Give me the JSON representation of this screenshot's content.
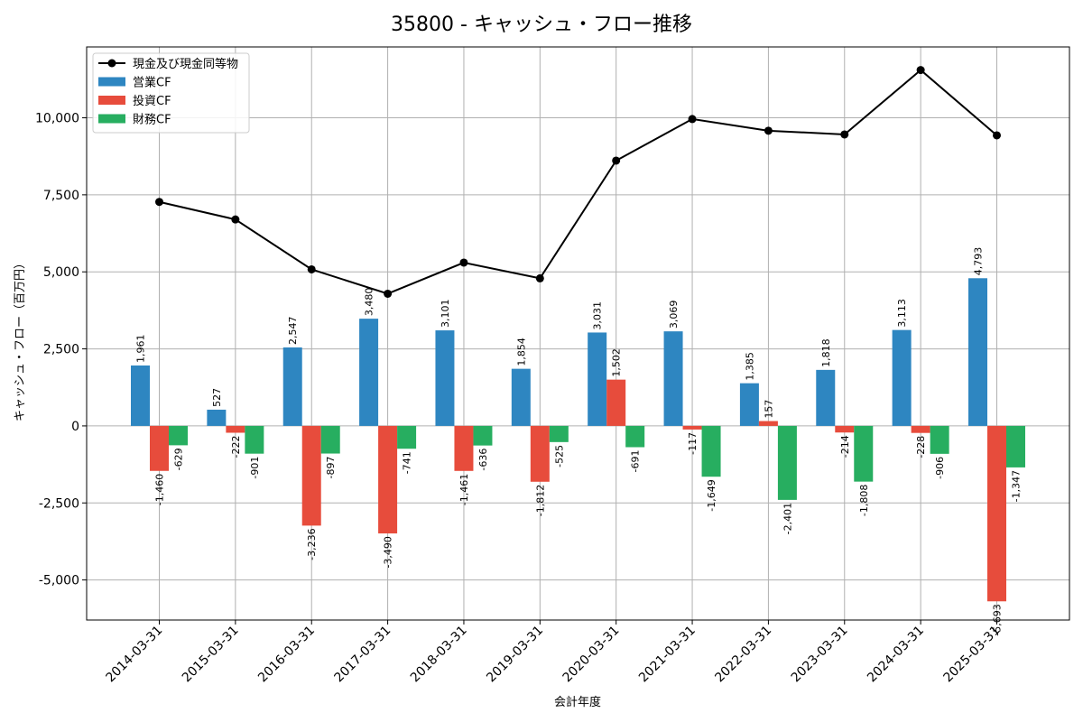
{
  "chart_data": {
    "type": "bar",
    "title": "35800 - キャッシュ・フロー推移",
    "xlabel": "会計年度",
    "ylabel": "キャッシュ・フロー（百万円）",
    "ylim": [
      -6300,
      12300
    ],
    "yticks": [
      -5000,
      -2500,
      0,
      2500,
      5000,
      7500,
      10000
    ],
    "ytick_labels": [
      "-5,000",
      "-2,500",
      "0",
      "2,500",
      "5,000",
      "7,500",
      "10,000"
    ],
    "grid": true,
    "legend_position": "top-left",
    "categories": [
      "2014-03-31",
      "2015-03-31",
      "2016-03-31",
      "2017-03-31",
      "2018-03-31",
      "2019-03-31",
      "2020-03-31",
      "2021-03-31",
      "2022-03-31",
      "2023-03-31",
      "2024-03-31",
      "2025-03-31"
    ],
    "series": [
      {
        "name": "営業CF",
        "type": "bar",
        "color": "#2e86c1",
        "values": [
          1961,
          527,
          2547,
          3480,
          3101,
          1854,
          3031,
          3069,
          1385,
          1818,
          3113,
          4793
        ],
        "labels": [
          "1,961",
          "527",
          "2,547",
          "3,480",
          "3,101",
          "1,854",
          "3,031",
          "3,069",
          "1,385",
          "1,818",
          "3,113",
          "4,793"
        ]
      },
      {
        "name": "投資CF",
        "type": "bar",
        "color": "#e74c3c",
        "values": [
          -1460,
          -222,
          -3236,
          -3490,
          -1461,
          -1812,
          1502,
          -117,
          157,
          -214,
          -228,
          -5693
        ],
        "labels": [
          "-1,460",
          "-222",
          "-3,236",
          "-3,490",
          "-1,461",
          "-1,812",
          "1,502",
          "-117",
          "157",
          "-214",
          "-228",
          "-5,693"
        ]
      },
      {
        "name": "財務CF",
        "type": "bar",
        "color": "#27ae60",
        "values": [
          -629,
          -901,
          -897,
          -741,
          -636,
          -525,
          -691,
          -1649,
          -2401,
          -1808,
          -906,
          -1347
        ],
        "labels": [
          "-629",
          "-901",
          "-897",
          "-741",
          "-636",
          "-525",
          "-691",
          "-1,649",
          "-2,401",
          "-1,808",
          "-906",
          "-1,347"
        ]
      },
      {
        "name": "現金及び現金同等物",
        "type": "line",
        "color": "#000000",
        "values": [
          7270,
          6700,
          5080,
          4290,
          5300,
          4790,
          8610,
          9960,
          9580,
          9460,
          11550,
          9430
        ]
      }
    ]
  }
}
